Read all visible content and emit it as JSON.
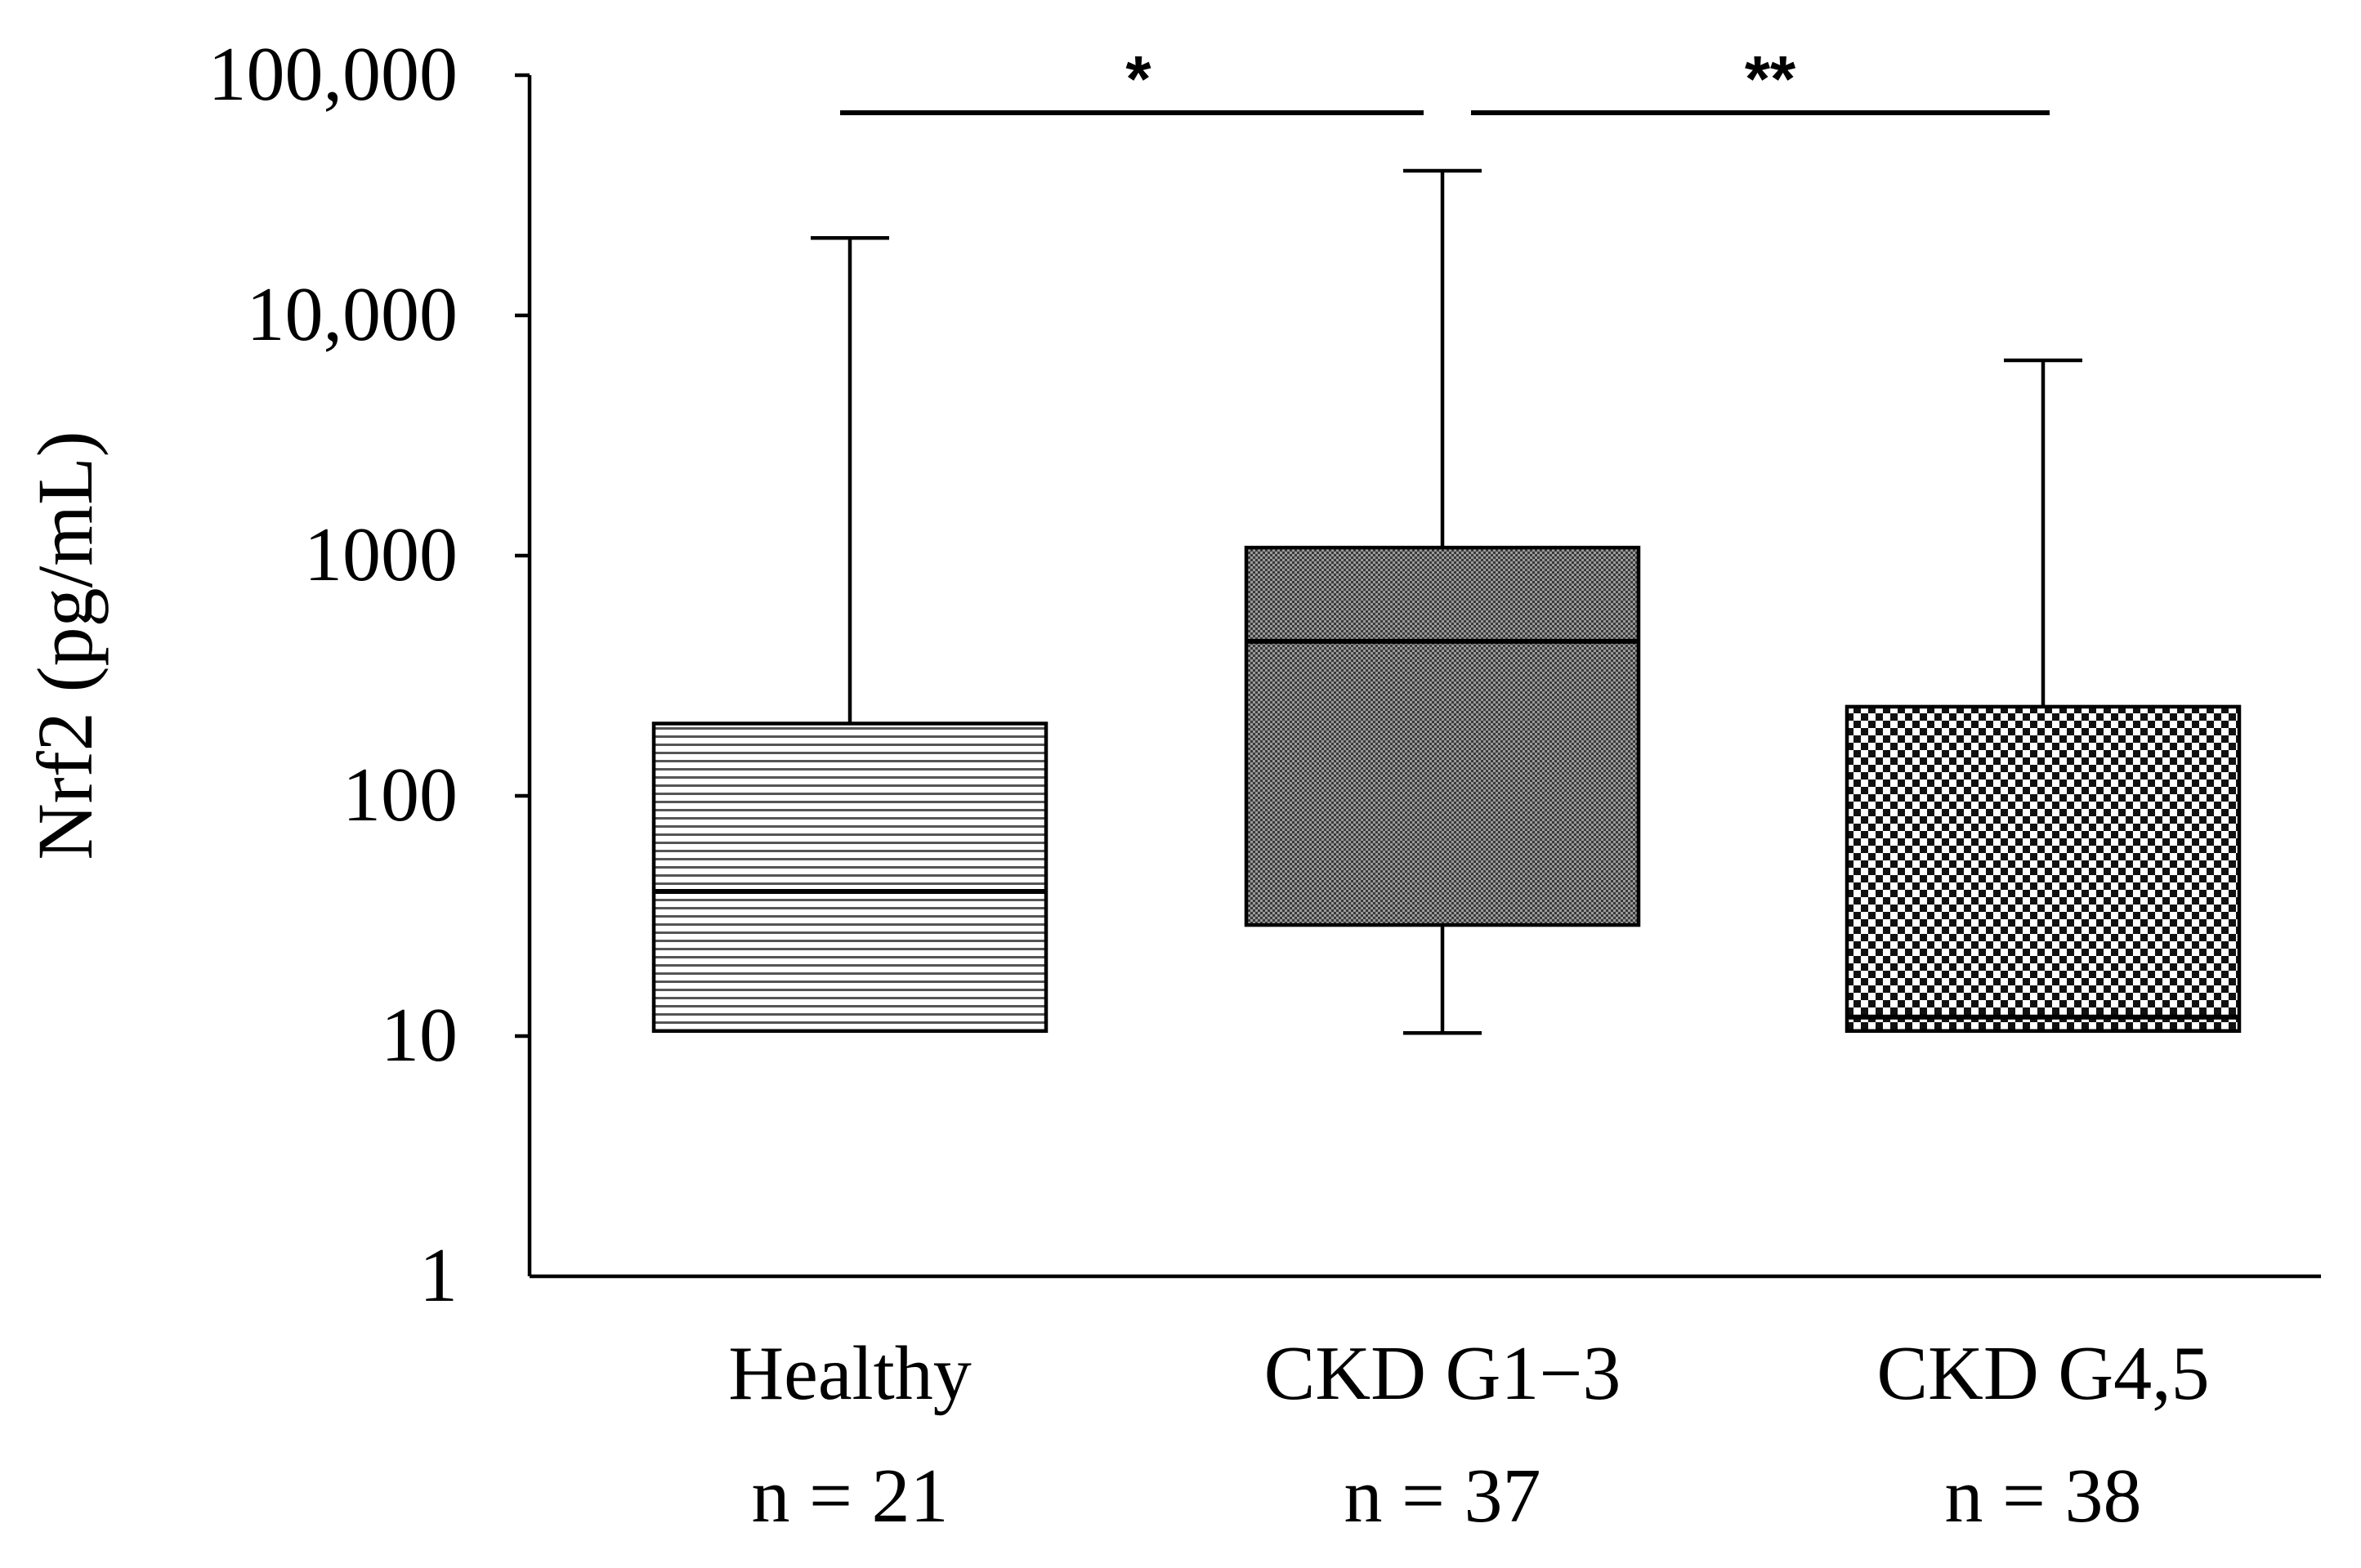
{
  "chart_data": {
    "type": "box",
    "ylabel": "Nrf2 (pg/mL)",
    "yscale": "log",
    "ylim": [
      1,
      100000
    ],
    "yticks": [
      {
        "value": 1,
        "label": "1"
      },
      {
        "value": 10,
        "label": "10"
      },
      {
        "value": 100,
        "label": "100"
      },
      {
        "value": 1000,
        "label": "1000"
      },
      {
        "value": 10000,
        "label": "10,000"
      },
      {
        "value": 100000,
        "label": "100,000"
      }
    ],
    "categories": [
      {
        "name": "Healthy",
        "n_label": "n = 21",
        "pattern": "horizontal-lines",
        "min": 10.5,
        "q1": 10.5,
        "median": 40,
        "q3": 200,
        "max": 21000
      },
      {
        "name": "CKD G1−3",
        "n_label": "n = 37",
        "pattern": "fine-dots",
        "min": 10.3,
        "q1": 29,
        "median": 440,
        "q3": 1080,
        "max": 40000
      },
      {
        "name": "CKD G4,5",
        "n_label": "n = 38",
        "pattern": "checkerboard",
        "min": 10.5,
        "q1": 10.5,
        "median": 12,
        "q3": 235,
        "max": 6500
      }
    ],
    "significance": [
      {
        "from": 0,
        "to": 1,
        "label": "*"
      },
      {
        "from": 1,
        "to": 2,
        "label": "**"
      }
    ]
  }
}
